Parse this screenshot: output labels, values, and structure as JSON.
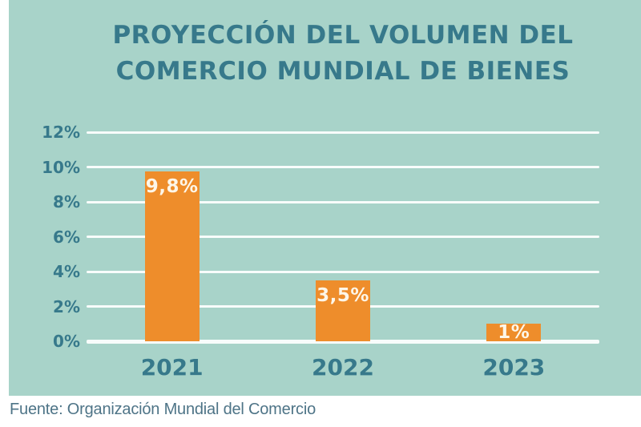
{
  "title": {
    "line1": "PROYECCIÓN DEL VOLUMEN DEL",
    "line2": "COMERCIO MUNDIAL DE BIENES"
  },
  "chart_data": {
    "type": "bar",
    "title": "Proyección del volumen del comercio mundial de bienes",
    "categories": [
      "2021",
      "2022",
      "2023"
    ],
    "values": [
      9.8,
      3.5,
      1
    ],
    "value_labels": [
      "9,8%",
      "3,5%",
      "1%"
    ],
    "yticks_top_to_bottom": [
      "12%",
      "10%",
      "8%",
      "6%",
      "4%",
      "2%",
      "0%"
    ],
    "ylim": [
      0,
      12
    ],
    "grid": true,
    "legend": false,
    "xlabel": "",
    "ylabel": ""
  },
  "source": {
    "text": "Fuente: Organización Mundial del Comercio"
  },
  "colors": {
    "panel_background": "#a8d3c9",
    "page_background": "#ffffff",
    "bar": "#ee8d2b",
    "bar_value_text": "#fdf6e8",
    "title_text": "#37798b",
    "axis_text": "#37798b",
    "gridline": "#f8fcfb",
    "source_text": "#4e7487"
  }
}
